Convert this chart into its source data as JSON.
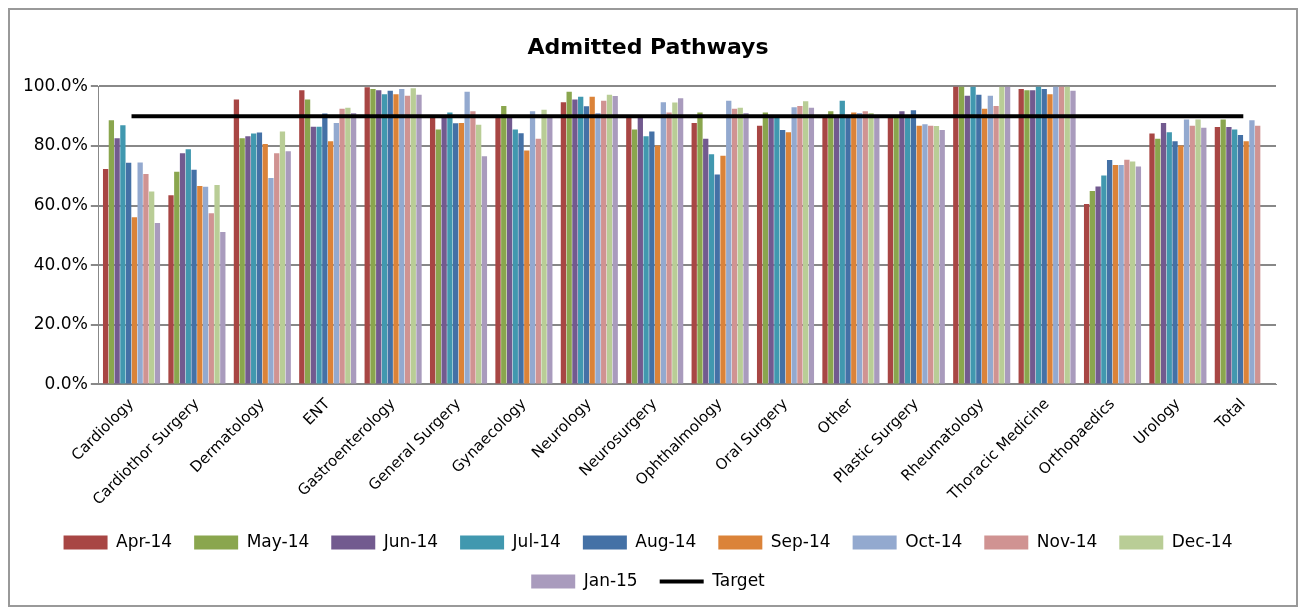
{
  "chart_data": {
    "type": "bar",
    "title": "Admitted Pathways",
    "categories": [
      "Cardiology",
      "Cardiothor Surgery",
      "Dermatology",
      "ENT",
      "Gastroenterology",
      "General Surgery",
      "Gynaecology",
      "Neurology",
      "Neurosurgery",
      "Ophthalmology",
      "Oral Surgery",
      "Other",
      "Plastic Surgery",
      "Rheumatology",
      "Thoracic Medicine",
      "Orthopaedics",
      "Urology",
      "Total"
    ],
    "series": [
      {
        "name": "Apr-14",
        "color": "#a84644",
        "values": [
          72.3,
          63.5,
          95.6,
          98.7,
          99.7,
          89.5,
          90.0,
          94.7,
          89.5,
          87.7,
          86.8,
          89.5,
          89.5,
          100,
          99.1,
          60.5,
          84.2,
          86.4
        ]
      },
      {
        "name": "May-14",
        "color": "#8aa64e",
        "values": [
          88.6,
          71.4,
          82.6,
          95.6,
          99.1,
          85.5,
          93.4,
          98.2,
          85.5,
          91.2,
          91.2,
          91.7,
          89.5,
          100,
          98.7,
          64.9,
          82.4,
          88.9
        ]
      },
      {
        "name": "Jun-14",
        "color": "#725a8f",
        "values": [
          82.6,
          77.6,
          83.3,
          86.5,
          98.7,
          90.0,
          89.5,
          95.6,
          89.5,
          82.4,
          89.5,
          89.5,
          91.7,
          96.9,
          98.7,
          66.4,
          87.7,
          86.4
        ]
      },
      {
        "name": "Jul-14",
        "color": "#4198af",
        "values": [
          87.0,
          78.9,
          84.2,
          86.5,
          97.4,
          91.2,
          85.5,
          96.5,
          83.3,
          77.2,
          89.5,
          95.2,
          90.0,
          100,
          100,
          70.1,
          84.6,
          85.5
        ]
      },
      {
        "name": "Aug-14",
        "color": "#4471a6",
        "values": [
          74.4,
          72.0,
          84.5,
          90.9,
          98.5,
          87.6,
          84.3,
          93.3,
          84.9,
          70.4,
          85.4,
          89.5,
          92.0,
          97.2,
          99.1,
          75.3,
          81.6,
          83.7
        ]
      },
      {
        "name": "Sep-14",
        "color": "#db8339",
        "values": [
          56.1,
          66.6,
          80.7,
          81.6,
          97.4,
          87.7,
          78.5,
          96.5,
          80.2,
          76.7,
          84.6,
          91.2,
          86.8,
          92.5,
          97.4,
          73.6,
          80.2,
          81.6
        ]
      },
      {
        "name": "Oct-14",
        "color": "#93a9cf",
        "values": [
          74.5,
          66.3,
          69.3,
          87.7,
          99.1,
          98.2,
          91.7,
          91.1,
          94.7,
          95.2,
          93.0,
          91.1,
          87.3,
          96.9,
          100,
          73.6,
          88.9,
          88.6
        ]
      },
      {
        "name": "Nov-14",
        "color": "#d09392",
        "values": [
          70.6,
          57.4,
          77.6,
          92.5,
          96.9,
          91.7,
          82.4,
          95.2,
          91.2,
          92.5,
          93.4,
          91.7,
          86.8,
          93.4,
          100,
          75.4,
          86.8,
          86.8
        ]
      },
      {
        "name": "Dec-14",
        "color": "#b9cd96",
        "values": [
          64.7,
          66.9,
          84.9,
          92.8,
          99.4,
          87.1,
          92.2,
          97.2,
          94.6,
          92.8,
          95.0,
          91.1,
          86.7,
          99.9,
          100,
          74.8,
          88.9,
          null
        ]
      },
      {
        "name": "Jan-15",
        "color": "#a99bbd",
        "values": [
          54.2,
          51.1,
          78.2,
          91.1,
          97.2,
          76.6,
          89.8,
          96.8,
          96.0,
          91.1,
          92.8,
          90.0,
          85.4,
          99.9,
          98.5,
          73.1,
          86.1,
          null
        ]
      },
      {
        "name": "Target",
        "type": "line",
        "color": "#000000",
        "values": [
          90,
          90,
          90,
          90,
          90,
          90,
          90,
          90,
          90,
          90,
          90,
          90,
          90,
          90,
          90,
          90,
          90,
          90
        ]
      }
    ],
    "ylim": [
      0,
      100
    ],
    "yticks": [
      {
        "value": 0,
        "label": "0.0%"
      },
      {
        "value": 20,
        "label": "20.0%"
      },
      {
        "value": 40,
        "label": "40.0%"
      },
      {
        "value": 60,
        "label": "60.0%"
      },
      {
        "value": 80,
        "label": "80.0%"
      },
      {
        "value": 100,
        "label": "100.0%"
      }
    ],
    "grid": "y",
    "legend": "bottom",
    "marker": "none"
  }
}
